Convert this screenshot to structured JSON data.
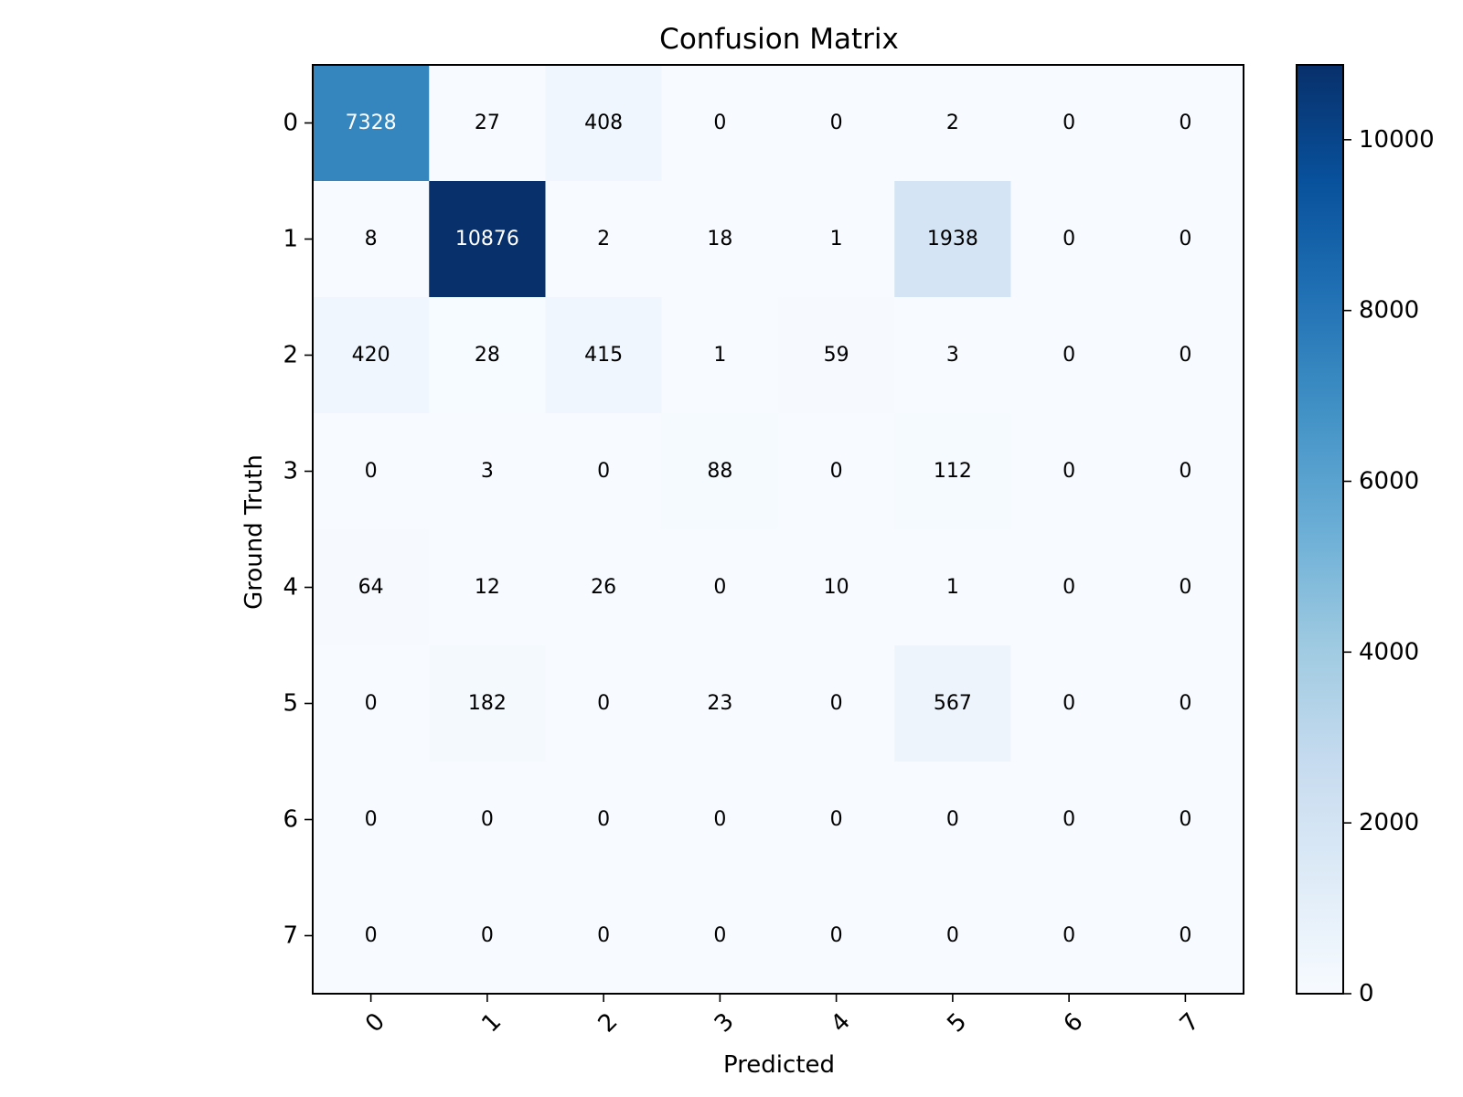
{
  "chart_data": {
    "type": "heatmap",
    "title": "Confusion Matrix",
    "xlabel": "Predicted",
    "ylabel": "Ground Truth",
    "x_categories": [
      "0",
      "1",
      "2",
      "3",
      "4",
      "5",
      "6",
      "7"
    ],
    "y_categories": [
      "0",
      "1",
      "2",
      "3",
      "4",
      "5",
      "6",
      "7"
    ],
    "values": [
      [
        7328,
        27,
        408,
        0,
        0,
        2,
        0,
        0
      ],
      [
        8,
        10876,
        2,
        18,
        1,
        1938,
        0,
        0
      ],
      [
        420,
        28,
        415,
        1,
        59,
        3,
        0,
        0
      ],
      [
        0,
        3,
        0,
        88,
        0,
        112,
        0,
        0
      ],
      [
        64,
        12,
        26,
        0,
        10,
        1,
        0,
        0
      ],
      [
        0,
        182,
        0,
        23,
        0,
        567,
        0,
        0
      ],
      [
        0,
        0,
        0,
        0,
        0,
        0,
        0,
        0
      ],
      [
        0,
        0,
        0,
        0,
        0,
        0,
        0,
        0
      ]
    ],
    "colormap": "Blues",
    "colorbar": {
      "range": [
        0,
        10876
      ],
      "ticks": [
        0,
        2000,
        4000,
        6000,
        8000,
        10000
      ]
    },
    "x_tick_rotation": 45,
    "grid": false
  }
}
